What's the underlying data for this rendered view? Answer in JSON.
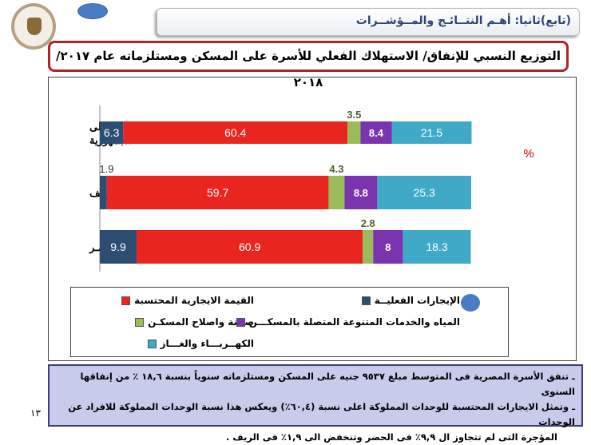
{
  "header": {
    "section_title": "(تابع)ثانيا: أهـم النتــائـج والمــؤشــرات"
  },
  "title": "التوزيع النسبي للإنفاق/ الاستهلاك الفعلي للأسرة على المسكن ومستلزماته عام ٢٠١٧/ ٢٠١٨",
  "page_number": "١٣",
  "chart_data": {
    "type": "bar",
    "orientation": "horizontal",
    "stacked": true,
    "unit_label": "%",
    "categories": [
      "إجمالى الجمهورية",
      "ريـف",
      "حضـر"
    ],
    "series": [
      {
        "name": "الإيجارات الفعليــة",
        "color": "#2e4d72",
        "values": [
          6.3,
          1.9,
          9.9
        ]
      },
      {
        "name": "القيمة الايجارية المحتسبة",
        "color": "#e8261f",
        "values": [
          60.4,
          59.7,
          60.9
        ]
      },
      {
        "name": "صيانة واصلاح المسكـن",
        "color": "#9bbb59",
        "values": [
          3.5,
          4.3,
          2.8
        ]
      },
      {
        "name": "المياه والخدمات المتنوعة المتصلة بالمسكـــن",
        "color": "#7b34b0",
        "values": [
          8.4,
          8.8,
          8
        ]
      },
      {
        "name": "الكهــربـــاء والغـــاز",
        "color": "#40a9c8",
        "values": [
          21.5,
          25.3,
          18.3
        ]
      }
    ],
    "xlim": [
      0,
      100
    ],
    "grid": false,
    "legend": "bottom"
  },
  "note": {
    "lines": [
      "ـ تنفق الأسرة المصرية فى المتوسط مبلغ ٩٥٣٧ جنيه على المسكن ومستلزماته سنوياً بنسبة ١٨,٦ ٪ من إنفاقها السنوى",
      "ـ وتمثل الايجارات المحتسبة للوحدات المملوكة اعلى نسبة (٦٠,٤٪) ويعكس هذا نسبة الوحدات المملوكة للافراد عن الوحدات",
      "المؤجرة التى لم تتجاوز ال ٩,٩٪ فى الحضر وتنخفض الى ١,٩٪ فى الريف ."
    ]
  }
}
